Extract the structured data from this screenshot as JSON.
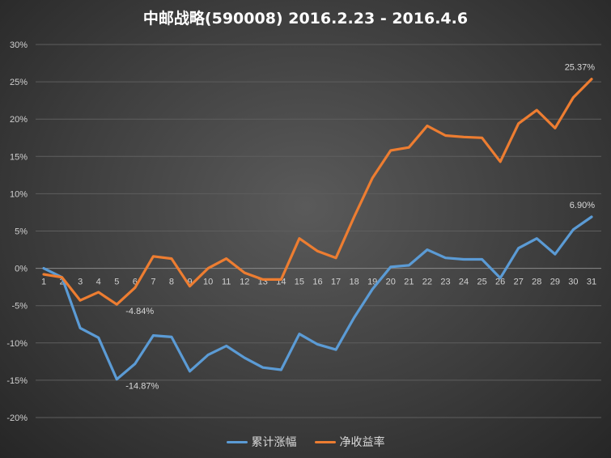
{
  "chart_data": {
    "type": "line",
    "title": "中邮战略(590008)  2016.2.23 - 2016.4.6",
    "xlabel": "",
    "ylabel": "",
    "ylim": [
      -20,
      30
    ],
    "yticks": [
      30,
      25,
      20,
      15,
      10,
      5,
      0,
      -5,
      -10,
      -15,
      -20
    ],
    "ytick_labels": [
      "30%",
      "25%",
      "20%",
      "15%",
      "10%",
      "5%",
      "0%",
      "-5%",
      "-10%",
      "-15%",
      "-20%"
    ],
    "categories": [
      "1",
      "2",
      "3",
      "4",
      "5",
      "6",
      "7",
      "8",
      "9",
      "10",
      "11",
      "12",
      "13",
      "14",
      "15",
      "16",
      "17",
      "18",
      "19",
      "20",
      "21",
      "22",
      "23",
      "24",
      "25",
      "26",
      "27",
      "28",
      "29",
      "30",
      "31"
    ],
    "grid": true,
    "legend_position": "bottom",
    "series": [
      {
        "name": "累计涨幅",
        "color": "#5b9bd5",
        "values": [
          0,
          -1.2,
          -8.0,
          -9.3,
          -14.87,
          -12.8,
          -9.0,
          -9.2,
          -13.8,
          -11.6,
          -10.4,
          -12.0,
          -13.3,
          -13.6,
          -8.8,
          -10.2,
          -10.9,
          -6.6,
          -2.8,
          0.2,
          0.4,
          2.5,
          1.4,
          1.2,
          1.2,
          -1.3,
          2.7,
          4.0,
          1.9,
          5.2,
          6.9
        ]
      },
      {
        "name": "净收益率",
        "color": "#ed7d31",
        "values": [
          -0.8,
          -1.2,
          -4.3,
          -3.2,
          -4.84,
          -2.6,
          1.6,
          1.3,
          -2.4,
          0.0,
          1.3,
          -0.6,
          -1.5,
          -1.5,
          4.0,
          2.3,
          1.4,
          6.9,
          12.1,
          15.8,
          16.2,
          19.1,
          17.8,
          17.6,
          17.5,
          14.3,
          19.4,
          21.2,
          18.8,
          22.9,
          25.37
        ]
      }
    ],
    "annotations": [
      {
        "series": 1,
        "index": 4,
        "text": "-4.84%"
      },
      {
        "series": 0,
        "index": 4,
        "text": "-14.87%"
      },
      {
        "series": 1,
        "index": 30,
        "text": "25.37%"
      },
      {
        "series": 0,
        "index": 30,
        "text": "6.90%"
      }
    ]
  }
}
